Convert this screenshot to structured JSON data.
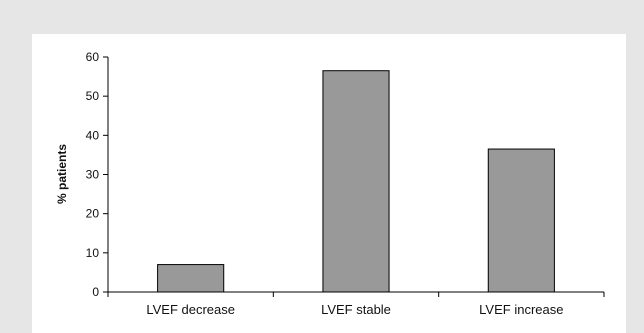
{
  "chart_data": {
    "type": "bar",
    "title": "",
    "xlabel": "",
    "ylabel": "% patients",
    "ylim": [
      0,
      60
    ],
    "yticks": [
      0,
      10,
      20,
      30,
      40,
      50,
      60
    ],
    "grid": false,
    "categories": [
      "LVEF decrease",
      "LVEF stable",
      "LVEF increase"
    ],
    "values": [
      7,
      56.5,
      36.5
    ],
    "bar_color": "#999999",
    "bar_edge_color": "#000000"
  }
}
